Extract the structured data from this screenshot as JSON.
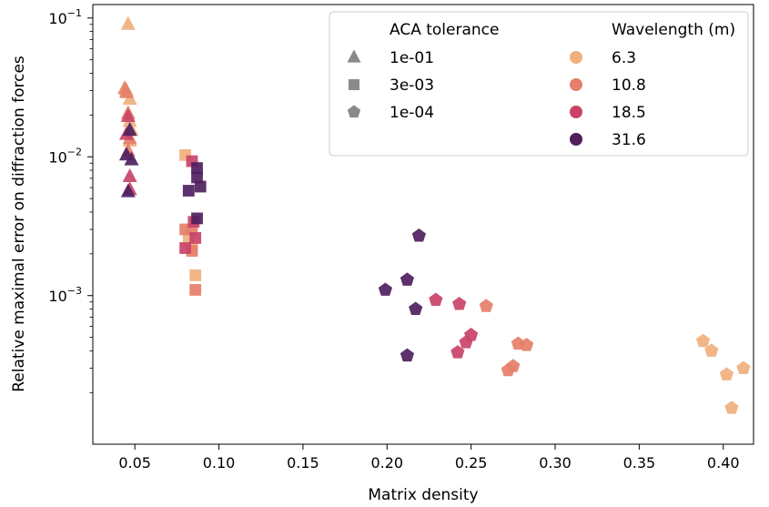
{
  "chart_data": {
    "type": "scatter",
    "title": "",
    "xlabel": "Matrix density",
    "ylabel": "Relative maximal error on diffraction forces",
    "xlim": [
      0.025,
      0.418
    ],
    "ylim": [
      8.5e-05,
      0.125
    ],
    "yscale": "log",
    "grid": false,
    "legend_position": "top-right",
    "x_ticks": [
      {
        "value": 0.05,
        "label": "0.05"
      },
      {
        "value": 0.1,
        "label": "0.10"
      },
      {
        "value": 0.15,
        "label": "0.15"
      },
      {
        "value": 0.2,
        "label": "0.20"
      },
      {
        "value": 0.25,
        "label": "0.25"
      },
      {
        "value": 0.3,
        "label": "0.30"
      },
      {
        "value": 0.35,
        "label": "0.35"
      },
      {
        "value": 0.4,
        "label": "0.40"
      }
    ],
    "y_ticks": [
      {
        "value": 0.1,
        "label": "10",
        "exp": "−1"
      },
      {
        "value": 0.01,
        "label": "10",
        "exp": "−2"
      },
      {
        "value": 0.001,
        "label": "10",
        "exp": "−3"
      }
    ],
    "legend": {
      "marker_title": "ACA tolerance",
      "color_title": "Wavelength (m)",
      "markers": [
        {
          "label": "1e-01",
          "shape": "triangle"
        },
        {
          "label": "3e-03",
          "shape": "square"
        },
        {
          "label": "1e-04",
          "shape": "pentagon"
        }
      ],
      "colors": [
        {
          "label": "6.3",
          "color": "#f0b07e"
        },
        {
          "label": "10.8",
          "color": "#e57f69"
        },
        {
          "label": "18.5",
          "color": "#c94368"
        },
        {
          "label": "31.6",
          "color": "#4f1f5e"
        }
      ]
    },
    "series": [
      {
        "wavelength": "6.3",
        "tolerance": "1e-01",
        "shape": "triangle",
        "color": "#f0b07e",
        "points": [
          [
            0.046,
            0.09
          ],
          [
            0.045,
            0.03
          ],
          [
            0.047,
            0.026
          ],
          [
            0.047,
            0.018
          ],
          [
            0.048,
            0.0155
          ],
          [
            0.047,
            0.013
          ]
        ]
      },
      {
        "wavelength": "10.8",
        "tolerance": "1e-01",
        "shape": "triangle",
        "color": "#e57f69",
        "points": [
          [
            0.044,
            0.031
          ],
          [
            0.045,
            0.029
          ],
          [
            0.046,
            0.0205
          ],
          [
            0.047,
            0.0135
          ],
          [
            0.046,
            0.011
          ]
        ]
      },
      {
        "wavelength": "18.5",
        "tolerance": "1e-01",
        "shape": "triangle",
        "color": "#c94368",
        "points": [
          [
            0.046,
            0.0195
          ],
          [
            0.045,
            0.0145
          ],
          [
            0.047,
            0.0072
          ],
          [
            0.047,
            0.0058
          ]
        ]
      },
      {
        "wavelength": "31.6",
        "tolerance": "1e-01",
        "shape": "triangle",
        "color": "#4f1f5e",
        "points": [
          [
            0.047,
            0.0155
          ],
          [
            0.045,
            0.0103
          ],
          [
            0.048,
            0.0095
          ],
          [
            0.046,
            0.0056
          ]
        ]
      },
      {
        "wavelength": "6.3",
        "tolerance": "3e-03",
        "shape": "square",
        "color": "#f0b07e",
        "points": [
          [
            0.08,
            0.0103
          ],
          [
            0.082,
            0.0025
          ],
          [
            0.086,
            0.0014
          ],
          [
            0.084,
            0.0022
          ]
        ]
      },
      {
        "wavelength": "10.8",
        "tolerance": "3e-03",
        "shape": "square",
        "color": "#e57f69",
        "points": [
          [
            0.08,
            0.003
          ],
          [
            0.084,
            0.003
          ],
          [
            0.084,
            0.0021
          ],
          [
            0.086,
            0.0011
          ]
        ]
      },
      {
        "wavelength": "18.5",
        "tolerance": "3e-03",
        "shape": "square",
        "color": "#c94368",
        "points": [
          [
            0.084,
            0.0093
          ],
          [
            0.085,
            0.0034
          ],
          [
            0.086,
            0.0026
          ],
          [
            0.08,
            0.0022
          ]
        ]
      },
      {
        "wavelength": "31.6",
        "tolerance": "3e-03",
        "shape": "square",
        "color": "#4f1f5e",
        "points": [
          [
            0.087,
            0.0083
          ],
          [
            0.087,
            0.0071
          ],
          [
            0.089,
            0.0061
          ],
          [
            0.082,
            0.0057
          ],
          [
            0.087,
            0.0036
          ]
        ]
      },
      {
        "wavelength": "6.3",
        "tolerance": "1e-04",
        "shape": "pentagon",
        "color": "#f0b07e",
        "points": [
          [
            0.388,
            0.00047
          ],
          [
            0.393,
            0.0004
          ],
          [
            0.402,
            0.00027
          ],
          [
            0.412,
            0.0003
          ],
          [
            0.405,
            0.000155
          ]
        ]
      },
      {
        "wavelength": "10.8",
        "tolerance": "1e-04",
        "shape": "pentagon",
        "color": "#e57f69",
        "points": [
          [
            0.259,
            0.00084
          ],
          [
            0.278,
            0.00045
          ],
          [
            0.283,
            0.00044
          ],
          [
            0.275,
            0.00031
          ],
          [
            0.272,
            0.00029
          ]
        ]
      },
      {
        "wavelength": "18.5",
        "tolerance": "1e-04",
        "shape": "pentagon",
        "color": "#c94368",
        "points": [
          [
            0.229,
            0.00093
          ],
          [
            0.243,
            0.00087
          ],
          [
            0.25,
            0.00052
          ],
          [
            0.247,
            0.00046
          ],
          [
            0.242,
            0.00039
          ]
        ]
      },
      {
        "wavelength": "31.6",
        "tolerance": "1e-04",
        "shape": "pentagon",
        "color": "#4f1f5e",
        "points": [
          [
            0.219,
            0.0027
          ],
          [
            0.212,
            0.0013
          ],
          [
            0.199,
            0.0011
          ],
          [
            0.217,
            0.0008
          ],
          [
            0.212,
            0.00037
          ]
        ]
      }
    ]
  }
}
